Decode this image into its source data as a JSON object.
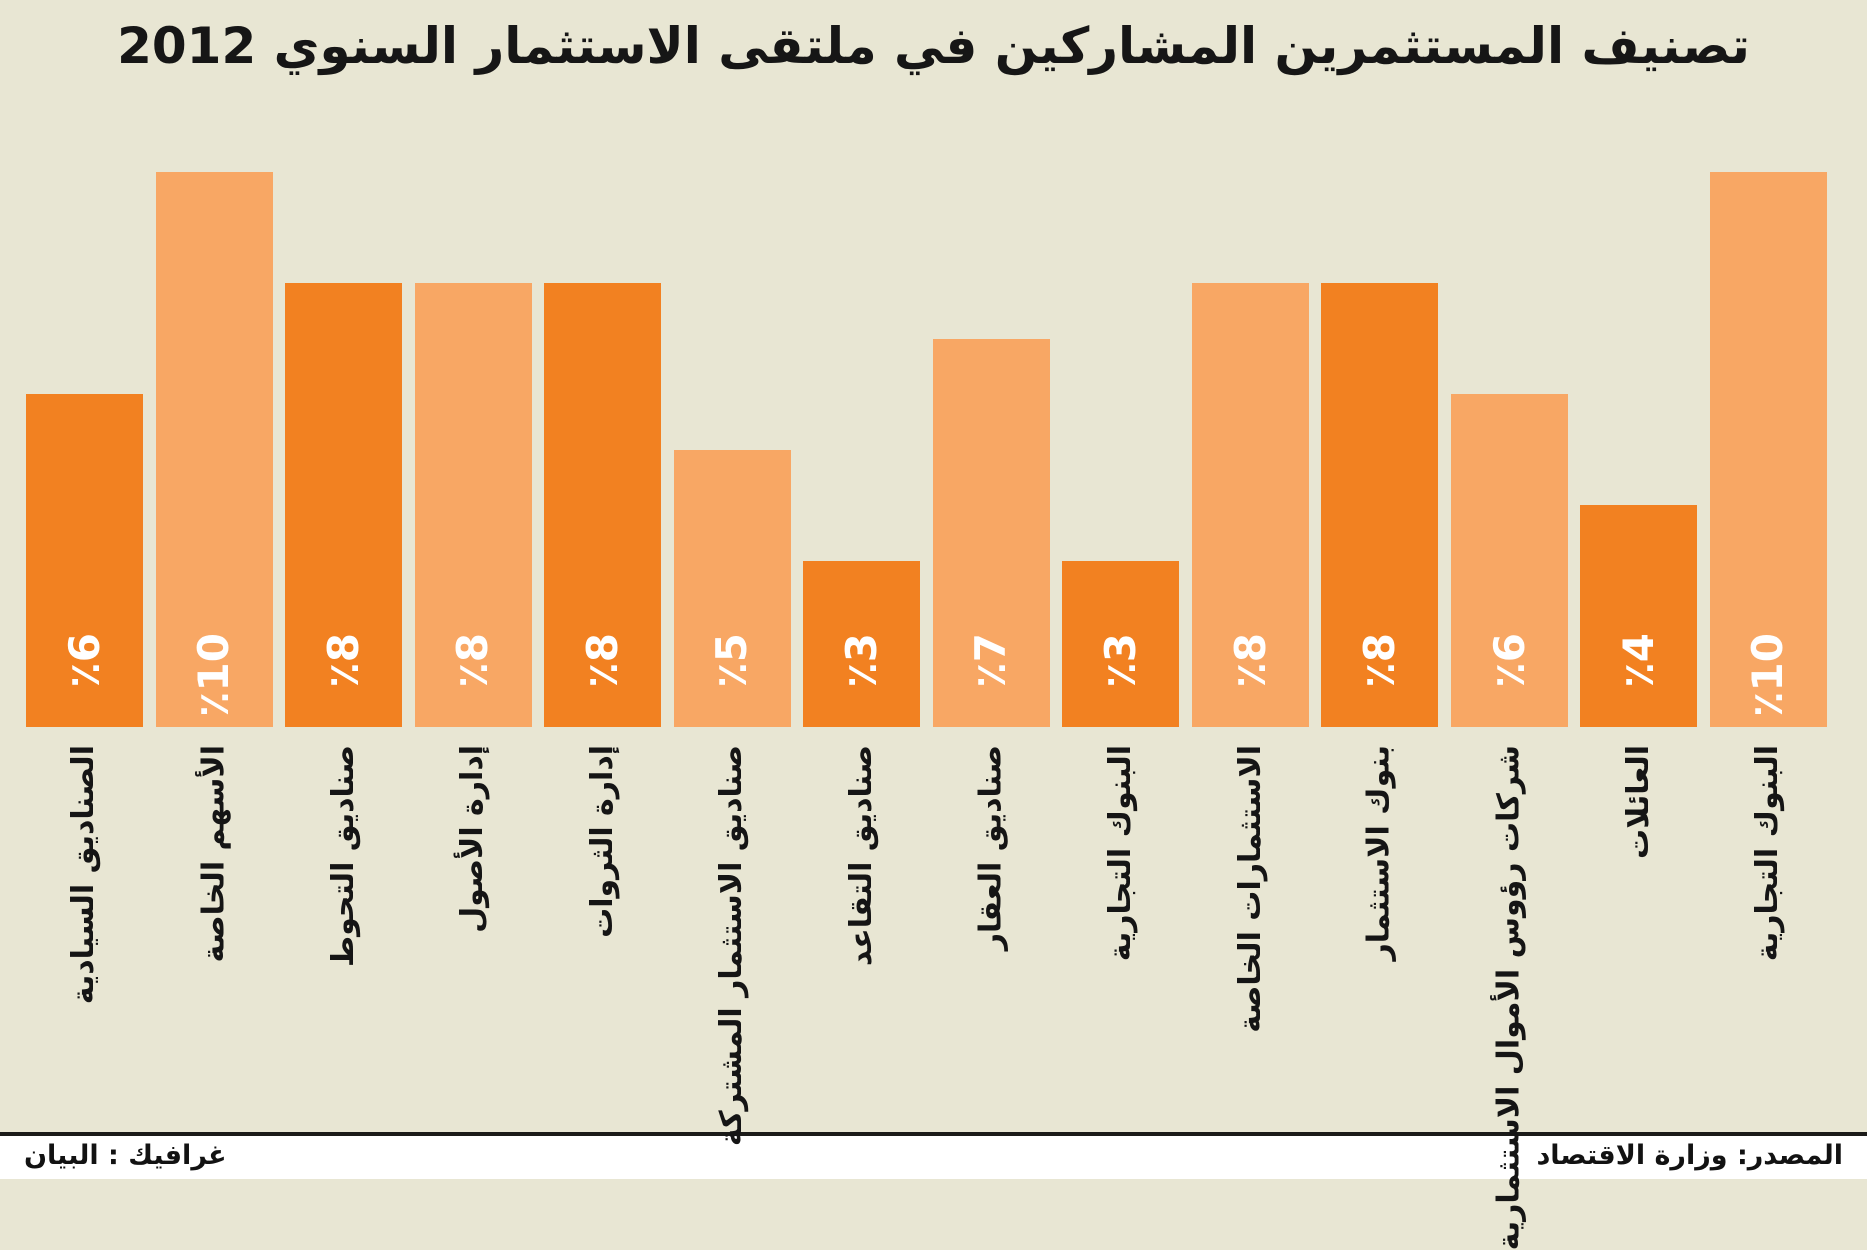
{
  "title": "تصنيف المستثمرين المشاركين في ملتقى الاستثمار السنوي 2012",
  "chart_data": {
    "type": "bar",
    "title": "تصنيف المستثمرين المشاركين في ملتقى الاستثمار السنوي 2012",
    "reading_direction": "rtl",
    "unit": "%",
    "ylim": [
      0,
      10
    ],
    "grid": false,
    "legend": false,
    "categories": [
      "البنوك التجارية",
      "العائلات",
      "شركات رؤوس الأموال الاستثمارية",
      "بنوك الاستثمار",
      "الاستثمارات الخاصة",
      "البنوك التجارية",
      "صناديق العقار",
      "صناديق التقاعد",
      "صناديق الاستثمار المشتركة",
      "إدارة الثروات",
      "إدارة الأصول",
      "صناديق التحوط",
      "الأسهم الخاصة",
      "الصناديق السيادية"
    ],
    "values": [
      10,
      4,
      6,
      8,
      8,
      3,
      7,
      3,
      5,
      8,
      8,
      8,
      10,
      6
    ],
    "value_labels": [
      "٪10",
      "٪4",
      "٪6",
      "٪8",
      "٪8",
      "٪3",
      "٪7",
      "٪3",
      "٪5",
      "٪8",
      "٪8",
      "٪8",
      "٪10",
      "٪6"
    ],
    "colors": {
      "light_orange": "#f8a764",
      "dark_orange": "#f28121",
      "background": "#e8e6d3",
      "value_text": "#ffffff",
      "label_text": "#151515"
    },
    "color_pattern_note": "bars alternate light/dark starting with light at the right-most bar"
  },
  "footer": {
    "source": "المصدر: وزارة الاقتصاد",
    "graphic": "غرافيك : البيان"
  }
}
